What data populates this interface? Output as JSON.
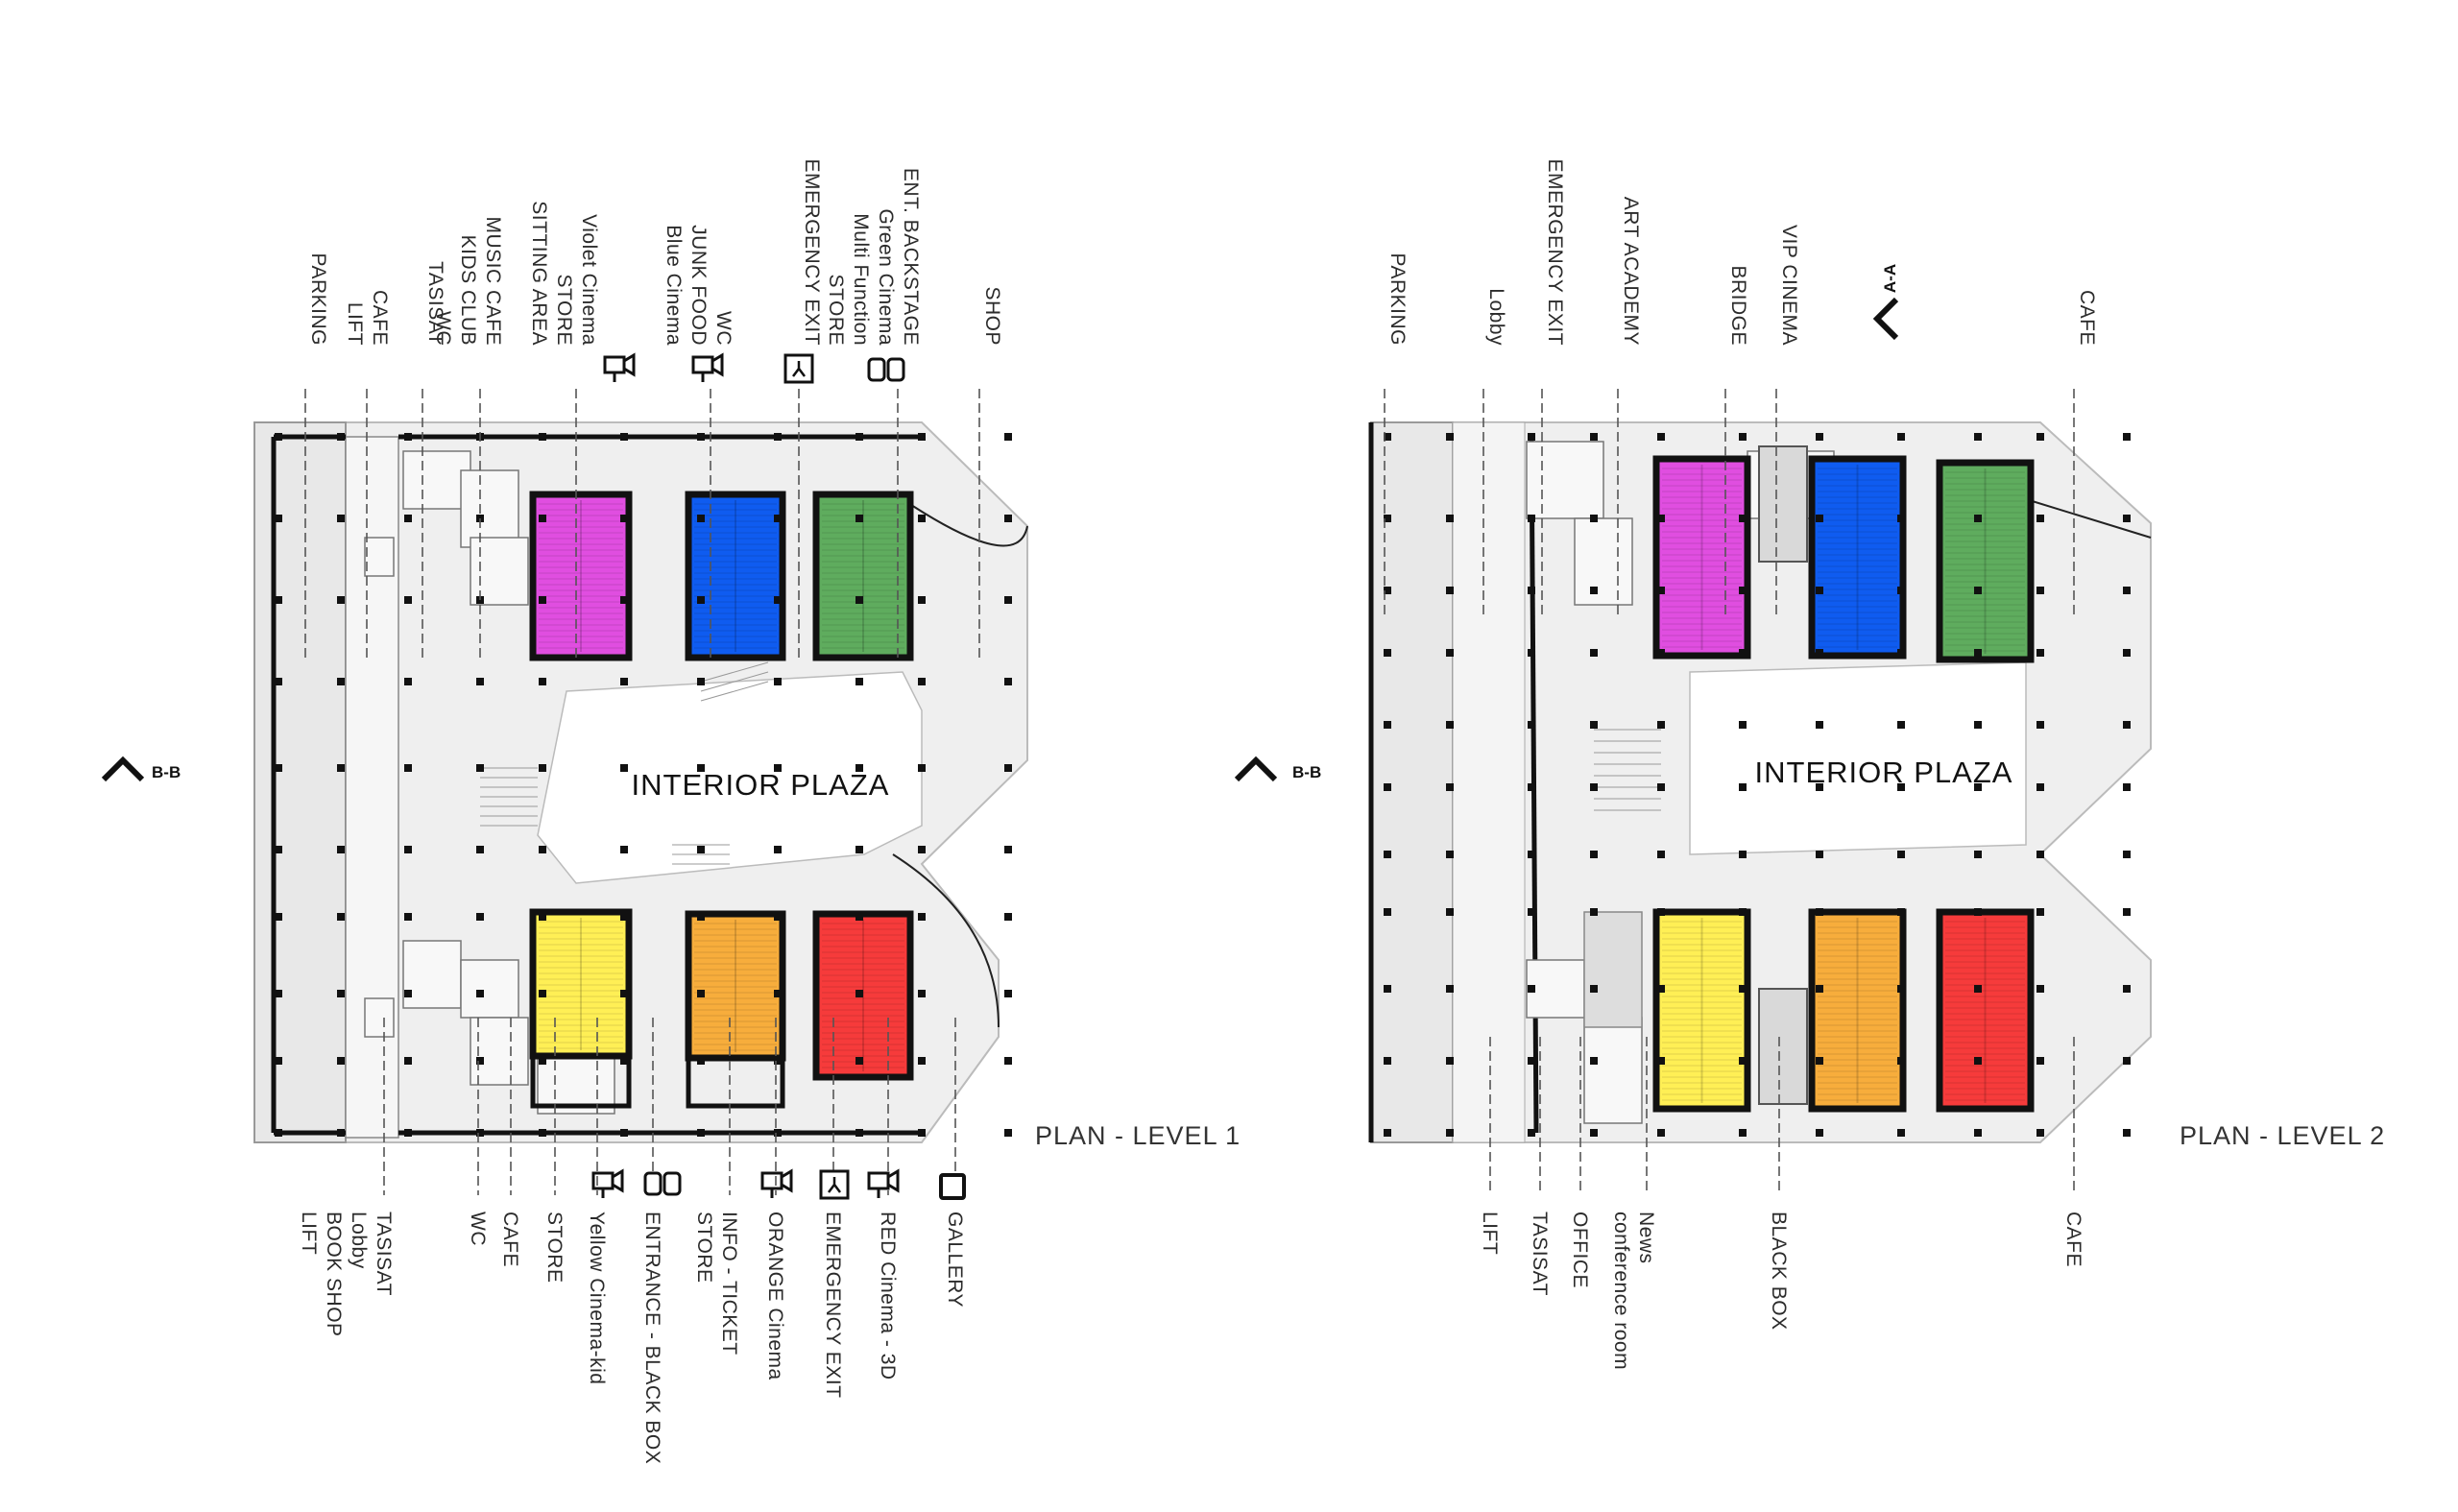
{
  "plan1": {
    "title": "PLAN - LEVEL  1",
    "plaza": "INTERIOR  PLAZA",
    "section_mark": "B-B",
    "top_labels": [
      {
        "lines": [
          "PARKING"
        ]
      },
      {
        "lines": [
          "LIFT",
          "CAFE"
        ]
      },
      {
        "lines": [
          "TASISAT"
        ]
      },
      {
        "lines": [
          "WC",
          "KIDS CLUB",
          "MUSIC  CAFE"
        ]
      },
      {
        "lines": [
          "SITTING  AREA",
          "STORE",
          "Violet  Cinema"
        ]
      },
      {
        "lines": [
          "Blue Cinema",
          "JUNK FOOD",
          "WC"
        ]
      },
      {
        "lines": [
          "EMERGENCY EXIT"
        ]
      },
      {
        "lines": [
          "STORE",
          "Multi Function",
          "Green Cinema",
          "ENT.  BACKSTAGE"
        ]
      },
      {
        "lines": [
          "SHOP"
        ]
      }
    ],
    "bottom_labels": [
      {
        "lines": [
          "LIFT",
          "BOOK SHOP",
          "Lobby",
          "TASISAT"
        ]
      },
      {
        "lines": [
          "WC"
        ]
      },
      {
        "lines": [
          "CAFE"
        ]
      },
      {
        "lines": [
          "STORE"
        ]
      },
      {
        "lines": [
          "Yellow Cinema-kid"
        ]
      },
      {
        "lines": [
          "ENTRANCE - BLACK BOX"
        ]
      },
      {
        "lines": [
          "STORE",
          "INFO - TICKET"
        ]
      },
      {
        "lines": [
          "ORANGE Cinema"
        ]
      },
      {
        "lines": [
          "EMERGENCY EXIT"
        ]
      },
      {
        "lines": [
          "RED Cinema - 3D"
        ]
      },
      {
        "lines": [
          "GALLERY"
        ]
      }
    ]
  },
  "plan2": {
    "title": "PLAN - LEVEL  2",
    "plaza": "INTERIOR  PLAZA",
    "section_mark": "B-B",
    "section_mark_top": "A-A",
    "top_labels": [
      {
        "lines": [
          "PARKING"
        ]
      },
      {
        "lines": [
          "Lobby"
        ]
      },
      {
        "lines": [
          "EMERGENCY EXIT"
        ]
      },
      {
        "lines": [
          "ART ACADEMY"
        ]
      },
      {
        "lines": [
          "BRIDGE"
        ]
      },
      {
        "lines": [
          "VIP CINEMA"
        ]
      },
      {
        "lines": [
          "CAFE"
        ]
      }
    ],
    "bottom_labels": [
      {
        "lines": [
          "LIFT"
        ]
      },
      {
        "lines": [
          "TASISAT"
        ]
      },
      {
        "lines": [
          "OFFICE"
        ]
      },
      {
        "lines": [
          "conference  room",
          "News"
        ]
      },
      {
        "lines": [
          "BLACK BOX"
        ]
      },
      {
        "lines": [
          "CAFE"
        ]
      }
    ]
  },
  "colors": {
    "violet": "#e04ee0",
    "blue": "#0f5cf0",
    "green": "#5fac5e",
    "yellow": "#ffef55",
    "orange": "#f7ad3c",
    "red": "#f63b3b",
    "floor": "#eeeeee",
    "wall": "#111111"
  }
}
